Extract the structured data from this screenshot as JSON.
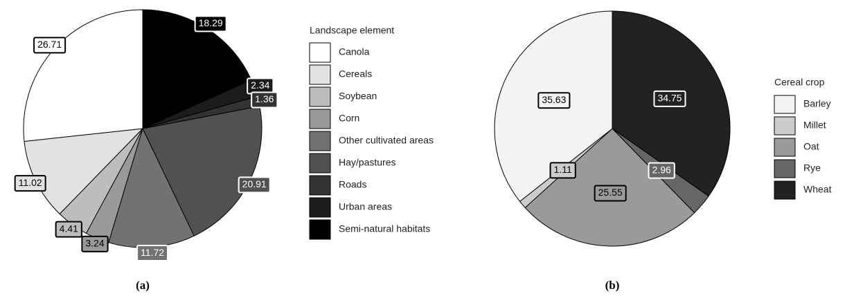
{
  "chart_data": [
    {
      "type": "pie",
      "caption": "(a)",
      "legend_title": "Landscape element",
      "categories": [
        "Canola",
        "Cereals",
        "Soybean",
        "Corn",
        "Other cultivated areas",
        "Hay/pastures",
        "Roads",
        "Urban areas",
        "Semi-natural habitats"
      ],
      "values": [
        26.71,
        11.02,
        4.41,
        3.24,
        11.72,
        20.91,
        1.36,
        2.34,
        18.29
      ],
      "colors": [
        "#ffffff",
        "#e2e2e2",
        "#bdbdbd",
        "#9a9a9a",
        "#727272",
        "#515151",
        "#333333",
        "#1c1c1c",
        "#000000"
      ]
    },
    {
      "type": "pie",
      "caption": "(b)",
      "legend_title": "Cereal crop",
      "categories": [
        "Barley",
        "Millet",
        "Oat",
        "Rye",
        "Wheat"
      ],
      "values": [
        35.63,
        1.11,
        25.55,
        2.96,
        34.75
      ],
      "colors": [
        "#f4f4f4",
        "#cccccc",
        "#9a9a9a",
        "#666666",
        "#222222"
      ]
    }
  ]
}
